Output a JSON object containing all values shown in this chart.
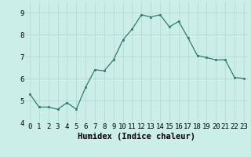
{
  "x": [
    0,
    1,
    2,
    3,
    4,
    5,
    6,
    7,
    8,
    9,
    10,
    11,
    12,
    13,
    14,
    15,
    16,
    17,
    18,
    19,
    20,
    21,
    22,
    23
  ],
  "y": [
    5.3,
    4.7,
    4.7,
    4.6,
    4.9,
    4.6,
    5.6,
    6.4,
    6.35,
    6.85,
    7.75,
    8.25,
    8.9,
    8.8,
    8.9,
    8.35,
    8.6,
    7.85,
    7.05,
    6.95,
    6.85,
    6.85,
    6.05,
    6.0
  ],
  "xlabel": "Humidex (Indice chaleur)",
  "ylim": [
    4.0,
    9.5
  ],
  "xlim": [
    -0.5,
    23.5
  ],
  "bg_color": "#cceee8",
  "line_color": "#2e7d6e",
  "marker_color": "#2e7d6e",
  "grid_color": "#b0d8d0",
  "xlabel_fontsize": 7.5,
  "tick_fontsize": 6.5,
  "yticks": [
    4,
    5,
    6,
    7,
    8,
    9
  ],
  "xticks": [
    0,
    1,
    2,
    3,
    4,
    5,
    6,
    7,
    8,
    9,
    10,
    11,
    12,
    13,
    14,
    15,
    16,
    17,
    18,
    19,
    20,
    21,
    22,
    23
  ]
}
